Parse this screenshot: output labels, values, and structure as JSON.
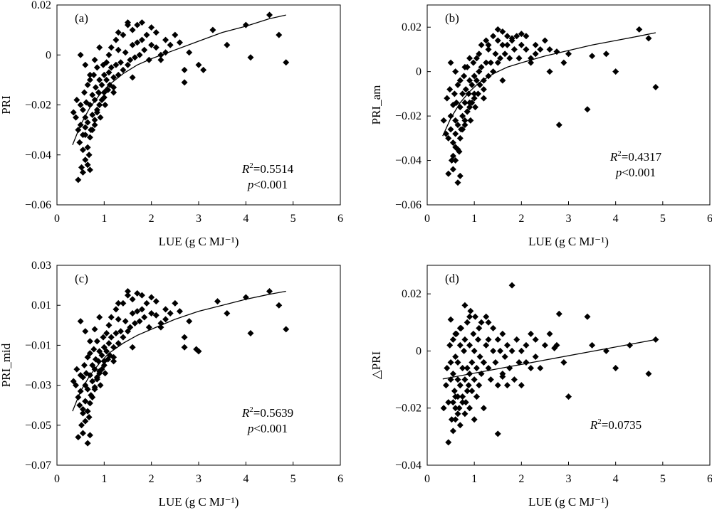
{
  "chart_data": [
    {
      "panel": "(a)",
      "type": "scatter",
      "xlabel": "LUE (g C MJ⁻¹)",
      "ylabel": "PRI",
      "xlim": [
        0,
        6
      ],
      "ylim": [
        -0.06,
        0.02
      ],
      "xticks": [
        "0",
        "1",
        "2",
        "3",
        "4",
        "5",
        "6"
      ],
      "yticks": [
        "−0.06",
        "−0.04",
        "−0.02",
        "0",
        "0.02"
      ],
      "annotation": {
        "r2": "=0.5514",
        "p": "<0.001"
      },
      "fit": {
        "x": [
          0.33,
          0.5,
          0.7,
          0.9,
          1.1,
          1.4,
          1.7,
          2.0,
          2.5,
          3.0,
          3.5,
          4.0,
          4.5,
          4.85
        ],
        "y": [
          -0.036,
          -0.028,
          -0.021,
          -0.016,
          -0.012,
          -0.0075,
          -0.004,
          -0.0015,
          0.002,
          0.0055,
          0.009,
          0.0115,
          0.0145,
          0.016
        ]
      },
      "points": {
        "x": [
          0.35,
          0.4,
          0.42,
          0.45,
          0.48,
          0.5,
          0.5,
          0.52,
          0.55,
          0.55,
          0.58,
          0.6,
          0.6,
          0.62,
          0.65,
          0.65,
          0.68,
          0.7,
          0.7,
          0.72,
          0.75,
          0.75,
          0.78,
          0.8,
          0.8,
          0.82,
          0.85,
          0.85,
          0.88,
          0.9,
          0.9,
          0.92,
          0.95,
          0.95,
          0.98,
          1.0,
          1.0,
          1.02,
          1.05,
          1.05,
          1.08,
          1.1,
          1.1,
          1.12,
          1.15,
          1.15,
          1.2,
          1.2,
          1.25,
          1.25,
          1.3,
          1.3,
          1.35,
          1.4,
          1.4,
          1.45,
          1.5,
          1.5,
          1.55,
          1.6,
          1.6,
          1.65,
          1.7,
          1.7,
          1.75,
          1.8,
          1.85,
          1.9,
          1.95,
          2.0,
          2.0,
          2.1,
          2.1,
          2.2,
          2.3,
          2.3,
          2.4,
          2.5,
          2.6,
          2.7,
          2.8,
          3.0,
          3.1,
          3.3,
          3.6,
          4.0,
          4.1,
          4.5,
          4.7,
          4.85,
          0.45,
          0.55,
          0.6,
          0.65,
          0.7,
          0.75,
          0.8,
          0.85,
          0.9,
          1.0,
          0.5,
          0.6,
          0.7,
          0.8,
          0.9,
          1.3,
          1.5,
          1.8,
          0.65,
          0.7,
          0.55,
          0.6,
          1.2,
          1.6,
          2.2,
          2.7
        ],
        "y": [
          -0.023,
          -0.025,
          -0.018,
          -0.03,
          -0.035,
          -0.02,
          -0.028,
          -0.045,
          -0.022,
          -0.038,
          -0.015,
          -0.025,
          -0.032,
          -0.019,
          -0.012,
          -0.027,
          -0.04,
          -0.02,
          -0.01,
          -0.03,
          -0.016,
          -0.024,
          -0.008,
          -0.018,
          -0.028,
          -0.013,
          -0.022,
          -0.005,
          -0.015,
          -0.02,
          -0.01,
          -0.025,
          -0.012,
          -0.018,
          -0.004,
          -0.015,
          -0.008,
          -0.02,
          -0.01,
          -0.003,
          -0.014,
          -0.007,
          0.0,
          -0.012,
          -0.005,
          0.003,
          -0.009,
          -0.015,
          -0.004,
          0.006,
          -0.008,
          0.002,
          -0.003,
          -0.006,
          0.008,
          0.001,
          -0.004,
          0.012,
          -0.002,
          0.004,
          0.01,
          -0.001,
          0.005,
          0.012,
          0.0,
          0.006,
          0.002,
          0.008,
          -0.002,
          0.004,
          0.011,
          0.003,
          0.009,
          -0.002,
          0.006,
          0.001,
          0.004,
          0.008,
          0.005,
          -0.011,
          0.001,
          -0.004,
          -0.006,
          0.01,
          0.004,
          0.012,
          -0.001,
          0.016,
          0.008,
          -0.003,
          -0.05,
          -0.047,
          -0.042,
          -0.037,
          -0.033,
          -0.03,
          -0.026,
          -0.023,
          -0.02,
          -0.017,
          0.0,
          -0.004,
          -0.008,
          -0.002,
          0.003,
          0.009,
          0.013,
          0.013,
          -0.044,
          -0.046,
          -0.032,
          -0.029,
          -0.013,
          -0.009,
          0.0,
          -0.006
        ]
      }
    },
    {
      "panel": "(b)",
      "type": "scatter",
      "xlabel": "LUE (g C MJ⁻¹)",
      "ylabel": "PRI_am",
      "xlim": [
        0,
        6
      ],
      "ylim": [
        -0.06,
        0.03
      ],
      "xticks": [
        "0",
        "1",
        "2",
        "3",
        "4",
        "5",
        "6"
      ],
      "yticks": [
        "−0.06",
        "−0.04",
        "−0.02",
        "0",
        "0.02"
      ],
      "annotation": {
        "r2": "=0.4317",
        "p": "<0.001"
      },
      "fit": {
        "x": [
          0.33,
          0.5,
          0.7,
          0.9,
          1.1,
          1.4,
          1.7,
          2.0,
          2.5,
          3.0,
          3.5,
          4.0,
          4.5,
          4.85
        ],
        "y": [
          -0.029,
          -0.021,
          -0.014,
          -0.009,
          -0.005,
          -0.001,
          0.002,
          0.004,
          0.007,
          0.0095,
          0.012,
          0.014,
          0.016,
          0.0175
        ]
      },
      "points": {
        "x": [
          0.35,
          0.4,
          0.42,
          0.45,
          0.48,
          0.5,
          0.5,
          0.52,
          0.55,
          0.55,
          0.58,
          0.6,
          0.6,
          0.62,
          0.65,
          0.65,
          0.68,
          0.7,
          0.7,
          0.72,
          0.75,
          0.75,
          0.78,
          0.8,
          0.8,
          0.82,
          0.85,
          0.85,
          0.88,
          0.9,
          0.9,
          0.92,
          0.95,
          0.95,
          0.98,
          1.0,
          1.0,
          1.02,
          1.05,
          1.05,
          1.08,
          1.1,
          1.1,
          1.12,
          1.15,
          1.15,
          1.2,
          1.2,
          1.25,
          1.25,
          1.3,
          1.3,
          1.35,
          1.4,
          1.4,
          1.45,
          1.5,
          1.5,
          1.55,
          1.6,
          1.6,
          1.65,
          1.7,
          1.7,
          1.75,
          1.8,
          1.85,
          1.9,
          1.95,
          2.0,
          2.0,
          2.1,
          2.1,
          2.2,
          2.3,
          2.3,
          2.4,
          2.5,
          2.6,
          2.75,
          2.8,
          2.9,
          3.0,
          3.4,
          3.5,
          3.8,
          4.0,
          4.5,
          4.7,
          4.85,
          0.45,
          0.55,
          0.6,
          0.65,
          0.7,
          0.75,
          0.8,
          0.85,
          0.9,
          1.0,
          0.5,
          0.6,
          0.7,
          0.8,
          0.9,
          1.3,
          1.5,
          1.8,
          0.65,
          0.7,
          0.55,
          0.6,
          1.2,
          1.6,
          2.2,
          2.6
        ],
        "y": [
          -0.022,
          -0.028,
          -0.012,
          -0.03,
          -0.008,
          -0.02,
          -0.026,
          -0.04,
          -0.015,
          -0.032,
          -0.01,
          -0.022,
          -0.028,
          -0.014,
          -0.006,
          -0.024,
          -0.036,
          -0.016,
          -0.004,
          -0.026,
          -0.01,
          -0.02,
          -0.002,
          -0.014,
          -0.024,
          -0.008,
          -0.018,
          0.002,
          -0.01,
          -0.016,
          -0.004,
          -0.022,
          -0.006,
          -0.014,
          0.004,
          -0.01,
          -0.002,
          -0.016,
          -0.004,
          0.006,
          -0.01,
          0.0,
          0.008,
          -0.006,
          0.002,
          0.012,
          -0.004,
          -0.012,
          0.004,
          0.014,
          -0.002,
          0.01,
          0.004,
          0.0,
          0.016,
          0.008,
          0.004,
          0.019,
          0.006,
          0.012,
          0.018,
          0.008,
          0.012,
          0.016,
          0.006,
          0.014,
          0.01,
          0.016,
          0.006,
          0.012,
          0.017,
          0.01,
          0.016,
          0.004,
          0.012,
          0.008,
          0.01,
          0.014,
          0.01,
          0.009,
          -0.024,
          0.004,
          0.008,
          -0.017,
          0.007,
          0.008,
          0.0,
          0.019,
          0.015,
          -0.007,
          -0.046,
          -0.044,
          -0.04,
          -0.035,
          -0.03,
          -0.026,
          -0.022,
          -0.018,
          -0.014,
          -0.012,
          0.004,
          0.0,
          -0.004,
          0.002,
          0.006,
          0.012,
          0.014,
          0.015,
          -0.05,
          -0.047,
          -0.038,
          -0.034,
          -0.008,
          -0.004,
          0.006,
          0.0
        ]
      }
    },
    {
      "panel": "(c)",
      "type": "scatter",
      "xlabel": "LUE (g C MJ⁻¹)",
      "ylabel": "PRI_mid",
      "xlim": [
        0,
        6
      ],
      "ylim": [
        -0.07,
        0.03
      ],
      "xticks": [
        "0",
        "1",
        "2",
        "3",
        "4",
        "5",
        "6"
      ],
      "yticks": [
        "−0.07",
        "−0.05",
        "−0.03",
        "−0.01",
        "0.01",
        "0.03"
      ],
      "annotation": {
        "r2": "=0.5639",
        "p": "<0.001"
      },
      "fit": {
        "x": [
          0.33,
          0.5,
          0.7,
          0.9,
          1.1,
          1.4,
          1.7,
          2.0,
          2.5,
          3.0,
          3.5,
          4.0,
          4.5,
          4.85
        ],
        "y": [
          -0.043,
          -0.033,
          -0.025,
          -0.019,
          -0.014,
          -0.009,
          -0.005,
          -0.002,
          0.003,
          0.007,
          0.01,
          0.013,
          0.0155,
          0.017
        ]
      },
      "points": {
        "x": [
          0.35,
          0.4,
          0.42,
          0.45,
          0.48,
          0.5,
          0.5,
          0.52,
          0.55,
          0.55,
          0.58,
          0.6,
          0.6,
          0.62,
          0.65,
          0.65,
          0.68,
          0.7,
          0.7,
          0.72,
          0.75,
          0.75,
          0.78,
          0.8,
          0.8,
          0.82,
          0.85,
          0.85,
          0.88,
          0.9,
          0.9,
          0.92,
          0.95,
          0.95,
          0.98,
          1.0,
          1.0,
          1.02,
          1.05,
          1.05,
          1.08,
          1.1,
          1.1,
          1.12,
          1.15,
          1.15,
          1.2,
          1.2,
          1.25,
          1.25,
          1.3,
          1.3,
          1.35,
          1.4,
          1.4,
          1.45,
          1.5,
          1.5,
          1.55,
          1.6,
          1.6,
          1.65,
          1.7,
          1.7,
          1.75,
          1.8,
          1.85,
          1.9,
          1.95,
          2.0,
          2.0,
          2.1,
          2.1,
          2.2,
          2.3,
          2.3,
          2.4,
          2.5,
          2.6,
          2.7,
          2.8,
          2.95,
          3.0,
          3.4,
          3.6,
          4.0,
          4.1,
          4.5,
          4.7,
          4.85,
          0.45,
          0.55,
          0.6,
          0.65,
          0.7,
          0.75,
          0.8,
          0.85,
          0.9,
          1.0,
          0.5,
          0.6,
          0.7,
          0.8,
          0.9,
          1.3,
          1.5,
          1.8,
          0.65,
          0.7,
          0.55,
          0.6,
          1.2,
          1.6,
          2.2,
          2.7
        ],
        "y": [
          -0.028,
          -0.03,
          -0.022,
          -0.036,
          -0.04,
          -0.025,
          -0.033,
          -0.05,
          -0.026,
          -0.044,
          -0.02,
          -0.03,
          -0.038,
          -0.024,
          -0.016,
          -0.032,
          -0.046,
          -0.025,
          -0.014,
          -0.035,
          -0.02,
          -0.028,
          -0.012,
          -0.022,
          -0.032,
          -0.017,
          -0.026,
          -0.008,
          -0.018,
          -0.024,
          -0.013,
          -0.03,
          -0.015,
          -0.022,
          -0.006,
          -0.018,
          -0.011,
          -0.024,
          -0.013,
          -0.004,
          -0.017,
          -0.009,
          0.0,
          -0.015,
          -0.006,
          0.004,
          -0.011,
          -0.018,
          -0.004,
          0.008,
          -0.009,
          0.003,
          -0.003,
          -0.006,
          0.011,
          0.002,
          -0.003,
          0.017,
          -0.001,
          0.006,
          0.013,
          0.001,
          0.007,
          0.016,
          0.002,
          0.008,
          0.004,
          0.011,
          -0.001,
          0.006,
          0.014,
          0.005,
          0.012,
          -0.001,
          0.008,
          0.003,
          0.006,
          0.011,
          0.007,
          -0.011,
          0.002,
          -0.012,
          -0.013,
          0.012,
          0.006,
          0.014,
          -0.004,
          0.017,
          0.01,
          -0.002,
          -0.056,
          -0.054,
          -0.048,
          -0.043,
          -0.039,
          -0.036,
          -0.031,
          -0.027,
          -0.023,
          -0.02,
          0.002,
          -0.003,
          -0.008,
          -0.002,
          0.004,
          0.011,
          0.015,
          0.015,
          -0.059,
          -0.055,
          -0.042,
          -0.038,
          -0.016,
          -0.011,
          0.001,
          -0.006
        ]
      }
    },
    {
      "panel": "(d)",
      "type": "scatter",
      "xlabel": "LUE (g C MJ⁻¹)",
      "ylabel": "△PRI",
      "xlim": [
        0,
        6
      ],
      "ylim": [
        -0.04,
        0.03
      ],
      "xticks": [
        "0",
        "1",
        "2",
        "3",
        "4",
        "5",
        "6"
      ],
      "yticks": [
        "−0.04",
        "−0.02",
        "0",
        "0.02"
      ],
      "annotation": {
        "r2": "=0.0735",
        "p": ""
      },
      "fit": {
        "x": [
          0.33,
          4.85
        ],
        "y": [
          -0.0098,
          0.004
        ]
      },
      "points": {
        "x": [
          0.35,
          0.4,
          0.42,
          0.45,
          0.48,
          0.5,
          0.5,
          0.52,
          0.55,
          0.55,
          0.58,
          0.6,
          0.6,
          0.62,
          0.65,
          0.65,
          0.68,
          0.7,
          0.7,
          0.72,
          0.75,
          0.75,
          0.78,
          0.8,
          0.8,
          0.82,
          0.85,
          0.85,
          0.88,
          0.9,
          0.9,
          0.92,
          0.95,
          0.95,
          0.98,
          1.0,
          1.0,
          1.02,
          1.05,
          1.05,
          1.08,
          1.1,
          1.1,
          1.12,
          1.15,
          1.15,
          1.2,
          1.2,
          1.25,
          1.25,
          1.3,
          1.3,
          1.35,
          1.4,
          1.4,
          1.45,
          1.5,
          1.5,
          1.55,
          1.6,
          1.6,
          1.65,
          1.7,
          1.7,
          1.75,
          1.8,
          1.85,
          1.9,
          1.95,
          2.0,
          2.0,
          2.1,
          2.1,
          2.2,
          2.3,
          2.3,
          2.4,
          2.5,
          2.6,
          2.75,
          2.8,
          2.9,
          3.0,
          3.4,
          3.5,
          3.8,
          4.0,
          4.3,
          4.7,
          4.85,
          0.45,
          0.55,
          0.6,
          0.65,
          0.7,
          0.75,
          0.8,
          0.85,
          0.9,
          1.0,
          0.5,
          0.6,
          0.7,
          0.8,
          0.9,
          1.3,
          1.5,
          1.8,
          0.65,
          0.7,
          0.55,
          0.6,
          1.2,
          1.6,
          2.2,
          2.7
        ],
        "y": [
          -0.02,
          -0.012,
          -0.006,
          -0.018,
          0.002,
          -0.01,
          -0.004,
          -0.024,
          -0.008,
          0.004,
          -0.014,
          -0.002,
          -0.016,
          0.006,
          -0.01,
          -0.004,
          -0.02,
          0.002,
          -0.012,
          0.008,
          -0.006,
          -0.016,
          0.0,
          -0.01,
          0.004,
          -0.018,
          -0.006,
          0.01,
          -0.012,
          0.002,
          -0.008,
          0.014,
          -0.004,
          -0.014,
          0.006,
          -0.01,
          0.0,
          0.012,
          -0.006,
          -0.016,
          0.004,
          -0.012,
          0.008,
          -0.002,
          -0.008,
          0.01,
          -0.004,
          -0.02,
          0.002,
          0.012,
          -0.006,
          0.004,
          -0.01,
          0.0,
          0.008,
          -0.004,
          -0.012,
          0.004,
          0.0,
          -0.008,
          0.006,
          -0.002,
          -0.012,
          0.002,
          -0.006,
          0.0,
          -0.01,
          0.004,
          -0.004,
          0.0,
          -0.012,
          0.002,
          -0.004,
          0.006,
          -0.002,
          0.004,
          -0.006,
          0.002,
          0.006,
          0.002,
          0.013,
          -0.004,
          -0.016,
          0.012,
          0.002,
          0.0,
          -0.006,
          0.002,
          -0.008,
          0.004,
          -0.032,
          -0.028,
          -0.024,
          -0.022,
          -0.026,
          -0.018,
          -0.022,
          -0.014,
          -0.02,
          -0.024,
          0.011,
          0.006,
          0.008,
          0.016,
          0.012,
          0.01,
          -0.029,
          0.023,
          -0.016,
          -0.012,
          -0.018,
          -0.02,
          -0.004,
          -0.009,
          -0.006,
          0.001
        ]
      }
    }
  ]
}
